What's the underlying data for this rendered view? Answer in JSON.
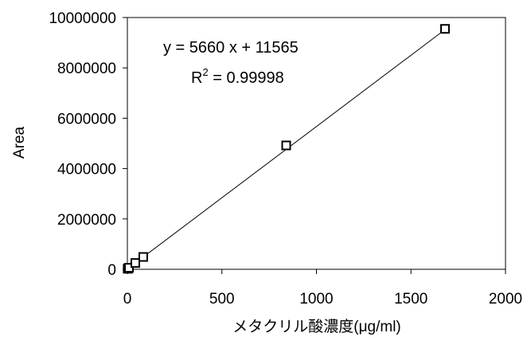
{
  "chart_data": {
    "type": "scatter",
    "title": "",
    "xlabel": "メタクリル酸濃度(μg/ml)",
    "ylabel": "Area",
    "xlim": [
      0,
      2000
    ],
    "ylim": [
      0,
      10000000
    ],
    "x_ticks": [
      "0",
      "500",
      "1000",
      "1500",
      "2000"
    ],
    "y_ticks": [
      "0",
      "2000000",
      "4000000",
      "6000000",
      "8000000",
      "10000000"
    ],
    "grid": false,
    "legend": "none",
    "series": [
      {
        "marker": "open-square",
        "points": [
          {
            "x": 1.7,
            "y": 20000
          },
          {
            "x": 4.2,
            "y": 35000
          },
          {
            "x": 8.4,
            "y": 60000
          },
          {
            "x": 42,
            "y": 250000
          },
          {
            "x": 84,
            "y": 490000
          },
          {
            "x": 840,
            "y": 4920000
          },
          {
            "x": 1680,
            "y": 9550000
          }
        ]
      }
    ],
    "trendline": {
      "type": "linear",
      "slope": 5660,
      "intercept": 11565,
      "equation": "y = 5660 x + 11565",
      "r2_label": "R",
      "r2_exponent": "2",
      "r2_value": " = 0.99998"
    }
  }
}
